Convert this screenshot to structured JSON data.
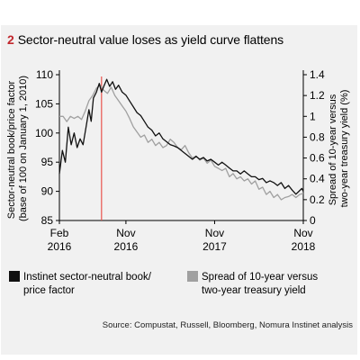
{
  "figure": {
    "number": "2",
    "title": "Sector-neutral value loses as yield curve flattens",
    "source": "Source: Compustat, Russell, Bloomberg, Nomura Instinet analysis"
  },
  "colors": {
    "panel_bg": "#f1f1f1",
    "title_number": "#c1272d",
    "marker_line": "#e8534b",
    "series_book_price": "#111111",
    "series_spread": "#a0a0a0"
  },
  "chart_data": {
    "type": "line",
    "x_axis": {
      "start": "Feb 2016",
      "end": "Nov 2018",
      "tick_labels": [
        {
          "month": "Feb",
          "year": "2016",
          "t": 0
        },
        {
          "month": "Nov",
          "year": "2016",
          "t": 9
        },
        {
          "month": "Nov",
          "year": "2017",
          "t": 21
        },
        {
          "month": "Nov",
          "year": "2018",
          "t": 33
        }
      ]
    },
    "y_left": {
      "label_line1": "Sector-neutral book/price factor",
      "label_line2": "(base of 100 on January 1, 2010)",
      "range": [
        85,
        110
      ],
      "ticks": [
        "85",
        "90",
        "95",
        "100",
        "105",
        "110"
      ]
    },
    "y_right": {
      "label_line1": "Spread of 10-year versus",
      "label_line2": "two-year treasury yield (%)",
      "range": [
        0,
        1.4
      ],
      "ticks": [
        "0",
        "0.2",
        "0.4",
        "0.6",
        "0.8",
        "1",
        "1.2",
        "1.4"
      ]
    },
    "marker": {
      "date": "2016-07",
      "t": 5.7
    },
    "grid": false,
    "legend_position": "bottom",
    "series": [
      {
        "name_line1": "Instinet sector-neutral book/",
        "name_line2": "price factor",
        "axis": "left",
        "points": [
          [
            0,
            93
          ],
          [
            0.4,
            97
          ],
          [
            0.8,
            95
          ],
          [
            1.2,
            101
          ],
          [
            1.6,
            98
          ],
          [
            2.0,
            100
          ],
          [
            2.4,
            97.5
          ],
          [
            2.8,
            99
          ],
          [
            3.2,
            98
          ],
          [
            3.6,
            101
          ],
          [
            4.0,
            104
          ],
          [
            4.3,
            102
          ],
          [
            4.6,
            106
          ],
          [
            5.0,
            107
          ],
          [
            5.4,
            108.5
          ],
          [
            5.7,
            107
          ],
          [
            6.0,
            108
          ],
          [
            6.4,
            109.2
          ],
          [
            6.8,
            108
          ],
          [
            7.2,
            108.8
          ],
          [
            7.6,
            107.5
          ],
          [
            8.0,
            108.2
          ],
          [
            8.5,
            107
          ],
          [
            9.0,
            106.5
          ],
          [
            9.5,
            105.5
          ],
          [
            10.0,
            104.5
          ],
          [
            10.5,
            103.5
          ],
          [
            11.0,
            103
          ],
          [
            11.5,
            102
          ],
          [
            12.0,
            101
          ],
          [
            12.5,
            100.5
          ],
          [
            13.0,
            99.5
          ],
          [
            13.5,
            100
          ],
          [
            14.0,
            99
          ],
          [
            14.5,
            98.5
          ],
          [
            15.0,
            98
          ],
          [
            15.5,
            97.8
          ],
          [
            16.0,
            97.5
          ],
          [
            16.5,
            97
          ],
          [
            17.0,
            96.5
          ],
          [
            17.5,
            96
          ],
          [
            18.0,
            95.5
          ],
          [
            18.5,
            96
          ],
          [
            19.0,
            95.5
          ],
          [
            19.5,
            95.8
          ],
          [
            20.0,
            95.2
          ],
          [
            20.5,
            95.5
          ],
          [
            21.0,
            95
          ],
          [
            21.5,
            94.5
          ],
          [
            22.0,
            95
          ],
          [
            22.5,
            94.5
          ],
          [
            23.0,
            94
          ],
          [
            23.5,
            93.5
          ],
          [
            24.0,
            93.5
          ],
          [
            24.5,
            93
          ],
          [
            25.0,
            93.5
          ],
          [
            25.5,
            93
          ],
          [
            26.0,
            92.5
          ],
          [
            26.5,
            92.5
          ],
          [
            27.0,
            92
          ],
          [
            27.5,
            92.2
          ],
          [
            28.0,
            91.5
          ],
          [
            28.5,
            91.8
          ],
          [
            29.0,
            91.5
          ],
          [
            29.5,
            91
          ],
          [
            30.0,
            91.5
          ],
          [
            30.5,
            90.5
          ],
          [
            31.0,
            91
          ],
          [
            31.5,
            90.2
          ],
          [
            32.0,
            89.5
          ],
          [
            32.4,
            90
          ],
          [
            32.8,
            90.5
          ],
          [
            33.0,
            90
          ]
        ]
      },
      {
        "name_line1": "Spread of 10-year versus",
        "name_line2": "two-year treasury yield",
        "axis": "right",
        "points": [
          [
            0,
            1.0
          ],
          [
            0.5,
            1.0
          ],
          [
            1.0,
            0.95
          ],
          [
            1.5,
            1.0
          ],
          [
            2.0,
            0.98
          ],
          [
            2.5,
            1.0
          ],
          [
            3.0,
            0.97
          ],
          [
            3.5,
            1.05
          ],
          [
            4.0,
            1.15
          ],
          [
            4.5,
            1.2
          ],
          [
            5.0,
            1.27
          ],
          [
            5.5,
            1.3
          ],
          [
            6.0,
            1.25
          ],
          [
            6.5,
            1.22
          ],
          [
            7.0,
            1.28
          ],
          [
            7.5,
            1.2
          ],
          [
            8.0,
            1.15
          ],
          [
            8.5,
            1.1
          ],
          [
            9.0,
            1.05
          ],
          [
            9.5,
            0.98
          ],
          [
            10.0,
            0.9
          ],
          [
            10.5,
            0.85
          ],
          [
            11.0,
            0.8
          ],
          [
            11.5,
            0.82
          ],
          [
            12.0,
            0.75
          ],
          [
            12.5,
            0.78
          ],
          [
            13.0,
            0.72
          ],
          [
            13.5,
            0.75
          ],
          [
            14.0,
            0.7
          ],
          [
            14.5,
            0.72
          ],
          [
            15.0,
            0.78
          ],
          [
            15.5,
            0.75
          ],
          [
            16.0,
            0.7
          ],
          [
            16.5,
            0.68
          ],
          [
            17.0,
            0.72
          ],
          [
            17.5,
            0.65
          ],
          [
            18.0,
            0.6
          ],
          [
            18.5,
            0.62
          ],
          [
            19.0,
            0.58
          ],
          [
            19.5,
            0.6
          ],
          [
            20.0,
            0.55
          ],
          [
            20.5,
            0.58
          ],
          [
            21.0,
            0.52
          ],
          [
            21.5,
            0.5
          ],
          [
            22.0,
            0.48
          ],
          [
            22.5,
            0.5
          ],
          [
            23.0,
            0.42
          ],
          [
            23.5,
            0.45
          ],
          [
            24.0,
            0.4
          ],
          [
            24.5,
            0.42
          ],
          [
            25.0,
            0.38
          ],
          [
            25.5,
            0.4
          ],
          [
            26.0,
            0.35
          ],
          [
            26.5,
            0.38
          ],
          [
            27.0,
            0.3
          ],
          [
            27.5,
            0.32
          ],
          [
            28.0,
            0.25
          ],
          [
            28.5,
            0.28
          ],
          [
            29.0,
            0.22
          ],
          [
            29.5,
            0.25
          ],
          [
            30.0,
            0.2
          ],
          [
            30.5,
            0.22
          ],
          [
            31.0,
            0.23
          ],
          [
            31.5,
            0.25
          ],
          [
            32.0,
            0.22
          ],
          [
            32.5,
            0.25
          ],
          [
            33.0,
            0.26
          ]
        ]
      }
    ]
  }
}
